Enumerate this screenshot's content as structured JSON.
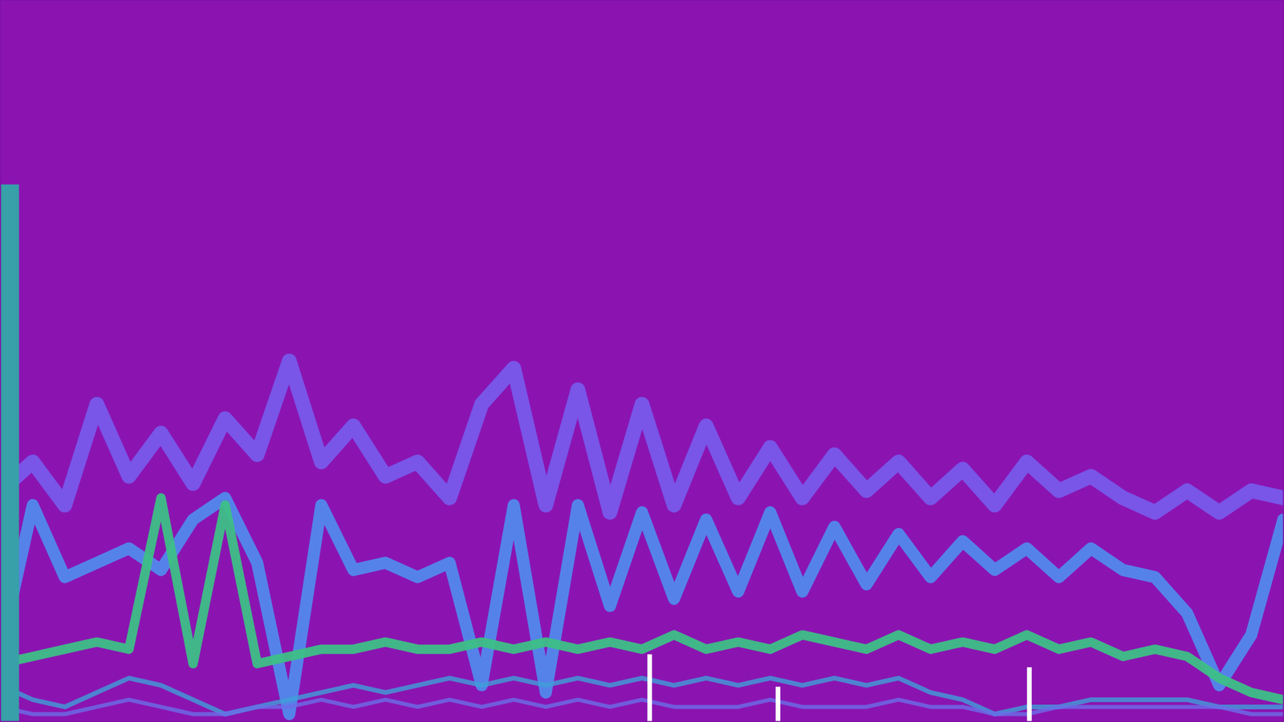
{
  "chart_data": {
    "type": "line",
    "xlim": [
      0,
      100
    ],
    "ylim": [
      0,
      100
    ],
    "tick_labels": false,
    "grid": false,
    "x": [
      0,
      2.5,
      5,
      7.5,
      10,
      12.5,
      15,
      17.5,
      20,
      22.5,
      25,
      27.5,
      30,
      32.5,
      35,
      37.5,
      40,
      42.5,
      45,
      47.5,
      50,
      52.5,
      55,
      57.5,
      60,
      62.5,
      65,
      67.5,
      70,
      72.5,
      75,
      77.5,
      80,
      82.5,
      85,
      87.5,
      90,
      92.5,
      95,
      97.5,
      100
    ],
    "series": [
      {
        "color": "#7660f2",
        "values": [
          32,
          36,
          30,
          44,
          34,
          40,
          33,
          42,
          37,
          50,
          36,
          41,
          34,
          36,
          31,
          44,
          49,
          30,
          46,
          29,
          44,
          30,
          41,
          31,
          38,
          31,
          37,
          32,
          36,
          31,
          35,
          30,
          36,
          32,
          34,
          31,
          29,
          32,
          29,
          32,
          31
        ]
      },
      {
        "color": "#4f8ef0",
        "values": [
          10,
          30,
          20,
          22,
          24,
          21,
          28,
          31,
          22,
          1,
          30,
          21,
          22,
          20,
          22,
          5,
          30,
          4,
          30,
          16,
          29,
          17,
          28,
          18,
          29,
          18,
          27,
          19,
          26,
          20,
          25,
          21,
          24,
          20,
          24,
          21,
          20,
          15,
          5,
          12,
          28
        ]
      },
      {
        "color": "#3dbf86",
        "values": [
          8,
          9,
          10,
          11,
          10,
          31,
          8,
          30,
          8,
          9,
          10,
          10,
          11,
          10,
          10,
          11,
          10,
          11,
          10,
          11,
          10,
          12,
          10,
          11,
          10,
          12,
          11,
          10,
          12,
          10,
          11,
          10,
          12,
          10,
          11,
          9,
          10,
          9,
          6,
          4,
          3
        ]
      },
      {
        "color": "#3e9fd8",
        "values": [
          5,
          3,
          2,
          4,
          6,
          5,
          3,
          1,
          2,
          3,
          4,
          5,
          4,
          5,
          6,
          5,
          6,
          5,
          6,
          5,
          6,
          5,
          6,
          5,
          6,
          5,
          6,
          5,
          6,
          4,
          3,
          1,
          2,
          2,
          3,
          3,
          3,
          3,
          2,
          2,
          2
        ]
      },
      {
        "color": "#6a6ee8",
        "values": [
          2,
          1,
          1,
          2,
          3,
          2,
          1,
          1,
          2,
          2,
          3,
          2,
          3,
          2,
          3,
          2,
          3,
          2,
          3,
          2,
          3,
          2,
          2,
          2,
          3,
          2,
          2,
          2,
          3,
          2,
          2,
          1,
          1,
          2,
          2,
          2,
          2,
          2,
          2,
          1,
          1
        ]
      },
      {
        "type": "bar",
        "color": "#38a0a8",
        "x": [
          0.7
        ],
        "values": [
          74.5
        ]
      },
      {
        "type": "bar",
        "color": "#ffffff",
        "x": [
          50.6,
          60.6,
          80.2
        ],
        "values": [
          9.3,
          4.8,
          7.5
        ]
      }
    ]
  }
}
